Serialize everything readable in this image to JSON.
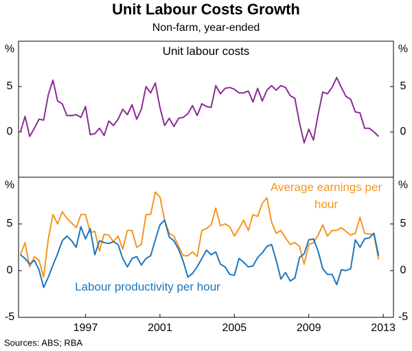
{
  "title": "Unit Labour Costs Growth",
  "subtitle": "Non-farm, year-ended",
  "note": "Sources: ABS; RBA",
  "chart_data": [
    {
      "type": "line",
      "x": [
        1993.5,
        1993.75,
        1994,
        1994.25,
        1994.5,
        1994.75,
        1995,
        1995.25,
        1995.5,
        1995.75,
        1996,
        1996.25,
        1996.5,
        1996.75,
        1997,
        1997.25,
        1997.5,
        1997.75,
        1998,
        1998.25,
        1998.5,
        1998.75,
        1999,
        1999.25,
        1999.5,
        1999.75,
        2000,
        2000.25,
        2000.5,
        2000.75,
        2001,
        2001.25,
        2001.5,
        2001.75,
        2002,
        2002.25,
        2002.5,
        2002.75,
        2003,
        2003.25,
        2003.5,
        2003.75,
        2004,
        2004.25,
        2004.5,
        2004.75,
        2005,
        2005.25,
        2005.5,
        2005.75,
        2006,
        2006.25,
        2006.5,
        2006.75,
        2007,
        2007.25,
        2007.5,
        2007.75,
        2008,
        2008.25,
        2008.5,
        2008.75,
        2009,
        2009.25,
        2009.5,
        2009.75,
        2010,
        2010.25,
        2010.5,
        2010.75,
        2011,
        2011.25,
        2011.5,
        2011.75,
        2012,
        2012.25,
        2012.5,
        2012.75
      ],
      "xlim": [
        1993.4,
        2013.55
      ],
      "ylim": [
        -5,
        10
      ],
      "yticks": [
        0,
        5,
        {
          "value": 10,
          "label": "%"
        }
      ],
      "series": [
        {
          "name": "Unit labour costs",
          "color": "#8b2a97",
          "values": [
            0,
            1.7,
            -0.5,
            0.4,
            1.4,
            1.3,
            4.1,
            5.7,
            3.4,
            3.1,
            1.8,
            1.8,
            1.9,
            1.6,
            2.8,
            -0.3,
            -0.2,
            0.4,
            -0.4,
            1.2,
            0.7,
            1.4,
            2.5,
            1.9,
            3.0,
            1.4,
            2.5,
            5.0,
            4.3,
            5.4,
            2.7,
            0.7,
            1.5,
            0.6,
            1.5,
            1.6,
            2.0,
            2.9,
            1.8,
            3.1,
            2.8,
            2.7,
            5.1,
            4.2,
            4.8,
            4.9,
            4.7,
            4.3,
            4.3,
            4.5,
            3.3,
            4.8,
            3.4,
            4.6,
            5.1,
            4.6,
            5.1,
            4.9,
            4.0,
            3.7,
            1.0,
            -1.2,
            0.3,
            -0.9,
            1.9,
            4.4,
            4.2,
            4.9,
            6.0,
            4.9,
            3.9,
            3.6,
            2.2,
            2.1,
            0.4,
            0.4,
            0.0,
            -0.5
          ]
        }
      ]
    },
    {
      "type": "line",
      "x": [
        1993.5,
        1993.75,
        1994,
        1994.25,
        1994.5,
        1994.75,
        1995,
        1995.25,
        1995.5,
        1995.75,
        1996,
        1996.25,
        1996.5,
        1996.75,
        1997,
        1997.25,
        1997.5,
        1997.75,
        1998,
        1998.25,
        1998.5,
        1998.75,
        1999,
        1999.25,
        1999.5,
        1999.75,
        2000,
        2000.25,
        2000.5,
        2000.75,
        2001,
        2001.25,
        2001.5,
        2001.75,
        2002,
        2002.25,
        2002.5,
        2002.75,
        2003,
        2003.25,
        2003.5,
        2003.75,
        2004,
        2004.25,
        2004.5,
        2004.75,
        2005,
        2005.25,
        2005.5,
        2005.75,
        2006,
        2006.25,
        2006.5,
        2006.75,
        2007,
        2007.25,
        2007.5,
        2007.75,
        2008,
        2008.25,
        2008.5,
        2008.75,
        2009,
        2009.25,
        2009.5,
        2009.75,
        2010,
        2010.25,
        2010.5,
        2010.75,
        2011,
        2011.25,
        2011.5,
        2011.75,
        2012,
        2012.25,
        2012.5,
        2012.75
      ],
      "xlim": [
        1993.4,
        2013.55
      ],
      "xticks": [
        1997,
        2001,
        2005,
        2009,
        2013
      ],
      "ylim": [
        -5,
        10
      ],
      "yticks": [
        -5,
        0,
        5,
        {
          "value": 10,
          "label": "%"
        }
      ],
      "series": [
        {
          "name": "Average earnings per hour",
          "color": "#f7941d",
          "values": [
            1.7,
            3.0,
            0.4,
            1.5,
            1.1,
            -0.7,
            3.4,
            6.0,
            5.0,
            6.3,
            5.6,
            5.1,
            4.6,
            6.0,
            6.0,
            4.1,
            4.2,
            2.1,
            3.9,
            3.8,
            3.1,
            3.7,
            2.3,
            4.3,
            4.3,
            2.5,
            2.8,
            6.0,
            6.0,
            8.4,
            7.9,
            5.4,
            4.0,
            3.7,
            2.6,
            1.6,
            1.6,
            2.0,
            1.5,
            4.3,
            4.5,
            4.9,
            6.7,
            4.8,
            5.0,
            4.7,
            3.7,
            4.5,
            5.4,
            4.3,
            6.0,
            5.8,
            7.2,
            7.8,
            5.2,
            4.0,
            4.3,
            3.5,
            2.8,
            3.0,
            2.6,
            0.7,
            2.8,
            3.0,
            3.8,
            4.9,
            3.7,
            4.3,
            4.3,
            4.6,
            4.2,
            3.8,
            4.0,
            5.7,
            4.0,
            3.9,
            3.9,
            1.2
          ]
        },
        {
          "name": "Labour productivity per hour",
          "color": "#1b75bc",
          "values": [
            1.7,
            1.3,
            0.7,
            1.1,
            0.1,
            -1.8,
            -0.7,
            0.6,
            1.8,
            3.2,
            3.7,
            3.2,
            2.5,
            4.7,
            3.4,
            4.5,
            1.7,
            3.2,
            3.0,
            2.9,
            3.1,
            2.8,
            1.3,
            0.4,
            1.3,
            1.5,
            0.6,
            1.3,
            1.6,
            3.3,
            4.9,
            5.4,
            3.6,
            3.2,
            2.3,
            1.0,
            -0.7,
            -0.3,
            0.4,
            1.3,
            2.2,
            1.7,
            2.0,
            0.7,
            0.4,
            -0.4,
            -0.5,
            1.3,
            0.9,
            0.4,
            0.5,
            1.4,
            1.9,
            2.6,
            2.8,
            1.1,
            -0.9,
            -0.2,
            -1.1,
            -0.8,
            1.4,
            1.8,
            3.3,
            3.4,
            2.1,
            0.2,
            -0.4,
            -0.4,
            -1.5,
            0.1,
            0.0,
            0.2,
            3.3,
            2.5,
            3.4,
            3.5,
            4.0,
            1.6
          ]
        }
      ]
    }
  ]
}
